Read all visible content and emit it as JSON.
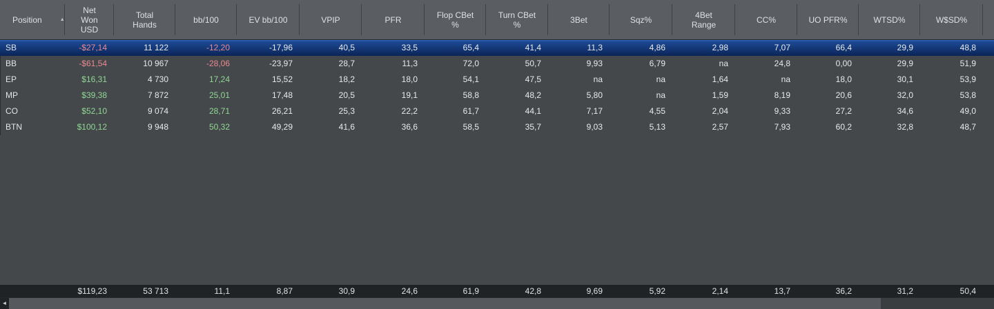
{
  "icons": {
    "sort_ascending": "▲",
    "scroll_left": "◄"
  },
  "colors": {
    "header_bg": "#5a5e62",
    "row_bg": "#44484b",
    "selected_row_top": "#2f63b8",
    "selected_row_bottom": "#0b2457",
    "totals_bg": "#202326",
    "negative_value": "#ea8a90",
    "positive_value": "#90d795",
    "scrollbar_thumb": "#55595d"
  },
  "table": {
    "columns": [
      {
        "id": "position",
        "lines": [
          "Position"
        ],
        "width": 94,
        "align": "left",
        "sort": "asc"
      },
      {
        "id": "net-won-usd",
        "lines": [
          "Net",
          "Won",
          "USD"
        ],
        "width": 71
      },
      {
        "id": "total-hands",
        "lines": [
          "Total",
          "Hands"
        ],
        "width": 89
      },
      {
        "id": "bb-100",
        "lines": [
          "bb/100"
        ],
        "width": 89
      },
      {
        "id": "ev-bb-100",
        "lines": [
          "EV bb/100"
        ],
        "width": 91
      },
      {
        "id": "vpip",
        "lines": [
          "VPIP"
        ],
        "width": 90
      },
      {
        "id": "pfr",
        "lines": [
          "PFR"
        ],
        "width": 91
      },
      {
        "id": "flop-cbet",
        "lines": [
          "Flop CBet",
          "%"
        ],
        "width": 89
      },
      {
        "id": "turn-cbet",
        "lines": [
          "Turn CBet",
          "%"
        ],
        "width": 90
      },
      {
        "id": "3bet",
        "lines": [
          "3Bet"
        ],
        "width": 89
      },
      {
        "id": "sqz",
        "lines": [
          "Sqz%"
        ],
        "width": 91
      },
      {
        "id": "4bet-range",
        "lines": [
          "4Bet",
          "Range"
        ],
        "width": 91
      },
      {
        "id": "cc",
        "lines": [
          "CC%"
        ],
        "width": 90
      },
      {
        "id": "uo-pfr",
        "lines": [
          "UO PFR%"
        ],
        "width": 89
      },
      {
        "id": "wtsd",
        "lines": [
          "WTSD%"
        ],
        "width": 89
      },
      {
        "id": "wssd",
        "lines": [
          "W$SD%"
        ],
        "width": 91
      },
      {
        "id": "overflow",
        "lines": [],
        "width": 16
      }
    ],
    "rows": [
      {
        "position": "SB",
        "selected": true,
        "values": [
          {
            "v": "-$27,14",
            "c": "neg"
          },
          {
            "v": "11 122"
          },
          {
            "v": "-12,20",
            "c": "neg"
          },
          {
            "v": "-17,96"
          },
          {
            "v": "40,5"
          },
          {
            "v": "33,5"
          },
          {
            "v": "65,4"
          },
          {
            "v": "41,4"
          },
          {
            "v": "11,3"
          },
          {
            "v": "4,86"
          },
          {
            "v": "2,98"
          },
          {
            "v": "7,07"
          },
          {
            "v": "66,4"
          },
          {
            "v": "29,9"
          },
          {
            "v": "48,8"
          }
        ]
      },
      {
        "position": "BB",
        "selected": false,
        "values": [
          {
            "v": "-$61,54",
            "c": "neg"
          },
          {
            "v": "10 967"
          },
          {
            "v": "-28,06",
            "c": "neg"
          },
          {
            "v": "-23,97"
          },
          {
            "v": "28,7"
          },
          {
            "v": "11,3"
          },
          {
            "v": "72,0"
          },
          {
            "v": "50,7"
          },
          {
            "v": "9,93"
          },
          {
            "v": "6,79"
          },
          {
            "v": "na"
          },
          {
            "v": "24,8"
          },
          {
            "v": "0,00"
          },
          {
            "v": "29,9"
          },
          {
            "v": "51,9"
          }
        ]
      },
      {
        "position": "EP",
        "selected": false,
        "values": [
          {
            "v": "$16,31",
            "c": "pos"
          },
          {
            "v": "4 730"
          },
          {
            "v": "17,24",
            "c": "pos"
          },
          {
            "v": "15,52"
          },
          {
            "v": "18,2"
          },
          {
            "v": "18,0"
          },
          {
            "v": "54,1"
          },
          {
            "v": "47,5"
          },
          {
            "v": "na"
          },
          {
            "v": "na"
          },
          {
            "v": "1,64"
          },
          {
            "v": "na"
          },
          {
            "v": "18,0"
          },
          {
            "v": "30,1"
          },
          {
            "v": "53,9"
          }
        ]
      },
      {
        "position": "MP",
        "selected": false,
        "values": [
          {
            "v": "$39,38",
            "c": "pos"
          },
          {
            "v": "7 872"
          },
          {
            "v": "25,01",
            "c": "pos"
          },
          {
            "v": "17,48"
          },
          {
            "v": "20,5"
          },
          {
            "v": "19,1"
          },
          {
            "v": "58,8"
          },
          {
            "v": "48,2"
          },
          {
            "v": "5,80"
          },
          {
            "v": "na"
          },
          {
            "v": "1,59"
          },
          {
            "v": "8,19"
          },
          {
            "v": "20,6"
          },
          {
            "v": "32,0"
          },
          {
            "v": "53,8"
          }
        ]
      },
      {
        "position": "CO",
        "selected": false,
        "values": [
          {
            "v": "$52,10",
            "c": "pos"
          },
          {
            "v": "9 074"
          },
          {
            "v": "28,71",
            "c": "pos"
          },
          {
            "v": "26,21"
          },
          {
            "v": "25,3"
          },
          {
            "v": "22,2"
          },
          {
            "v": "61,7"
          },
          {
            "v": "44,1"
          },
          {
            "v": "7,17"
          },
          {
            "v": "4,55"
          },
          {
            "v": "2,04"
          },
          {
            "v": "9,33"
          },
          {
            "v": "27,2"
          },
          {
            "v": "34,6"
          },
          {
            "v": "49,0"
          }
        ]
      },
      {
        "position": "BTN",
        "selected": false,
        "values": [
          {
            "v": "$100,12",
            "c": "pos"
          },
          {
            "v": "9 948"
          },
          {
            "v": "50,32",
            "c": "pos"
          },
          {
            "v": "49,29"
          },
          {
            "v": "41,6"
          },
          {
            "v": "36,6"
          },
          {
            "v": "58,5"
          },
          {
            "v": "35,7"
          },
          {
            "v": "9,03"
          },
          {
            "v": "5,13"
          },
          {
            "v": "2,57"
          },
          {
            "v": "7,93"
          },
          {
            "v": "60,2"
          },
          {
            "v": "32,8"
          },
          {
            "v": "48,7"
          }
        ]
      }
    ],
    "totals": {
      "position": "",
      "values": [
        "$119,23",
        "53 713",
        "11,1",
        "8,87",
        "30,9",
        "24,6",
        "61,9",
        "42,8",
        "9,69",
        "5,92",
        "2,14",
        "13,7",
        "36,2",
        "31,2",
        "50,4"
      ]
    }
  }
}
